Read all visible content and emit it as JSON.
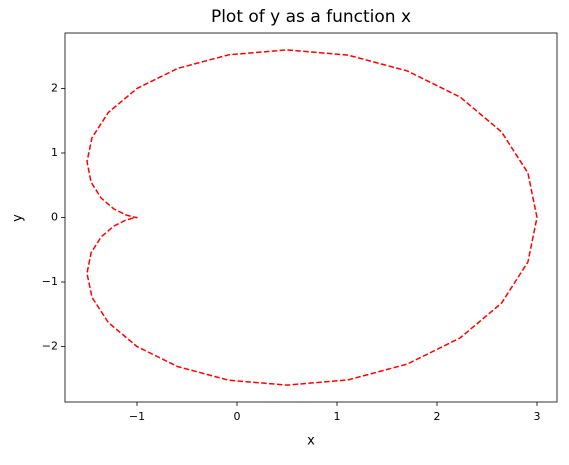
{
  "chart_data": {
    "type": "line",
    "title": "Plot of y as a function x",
    "x_label": "x",
    "y_label": "y",
    "x": [
      3,
      2.9093,
      2.6454,
      2.2321,
      1.7057,
      1.1119,
      0.5,
      -0.0821,
      -0.5924,
      -1,
      -1.287,
      -1.4501,
      -1.5,
      -1.4592,
      -1.3585,
      -1.2321,
      -1.1133,
      -1.0299,
      -1,
      -1.0299,
      -1.1133,
      -1.2321,
      -1.3585,
      -1.4592,
      -1.5,
      -1.4501,
      -1.287,
      -1,
      -0.5924,
      -0.0821,
      0.5,
      1.1119,
      1.7057,
      2.2321,
      2.6454,
      2.9093,
      3
    ],
    "values": [
      0,
      0.6893,
      1.3268,
      1.866,
      2.2704,
      2.5169,
      2.5981,
      2.5222,
      2.3117,
      2,
      1.6277,
      1.2366,
      0.866,
      0.5473,
      0.3008,
      0.134,
      0.0413,
      0.0053,
      0,
      -0.0053,
      -0.0413,
      -0.134,
      -0.3008,
      -0.5473,
      -0.866,
      -1.2366,
      -1.6277,
      -2,
      -2.3117,
      -2.5222,
      -2.5981,
      -2.5169,
      -2.2704,
      -1.866,
      -1.3268,
      -0.6893,
      0
    ],
    "color": "#ff0000",
    "line_style": "dashed",
    "xlim": [
      -1.72,
      3.2
    ],
    "xticks": [
      {
        "value": -1,
        "label": "−1"
      },
      0,
      1,
      2,
      3
    ],
    "ylim": [
      -2.86,
      2.86
    ],
    "yticks": [
      {
        "value": -2,
        "label": "−2"
      },
      {
        "value": -1,
        "label": "−1"
      },
      0,
      1,
      2
    ]
  }
}
